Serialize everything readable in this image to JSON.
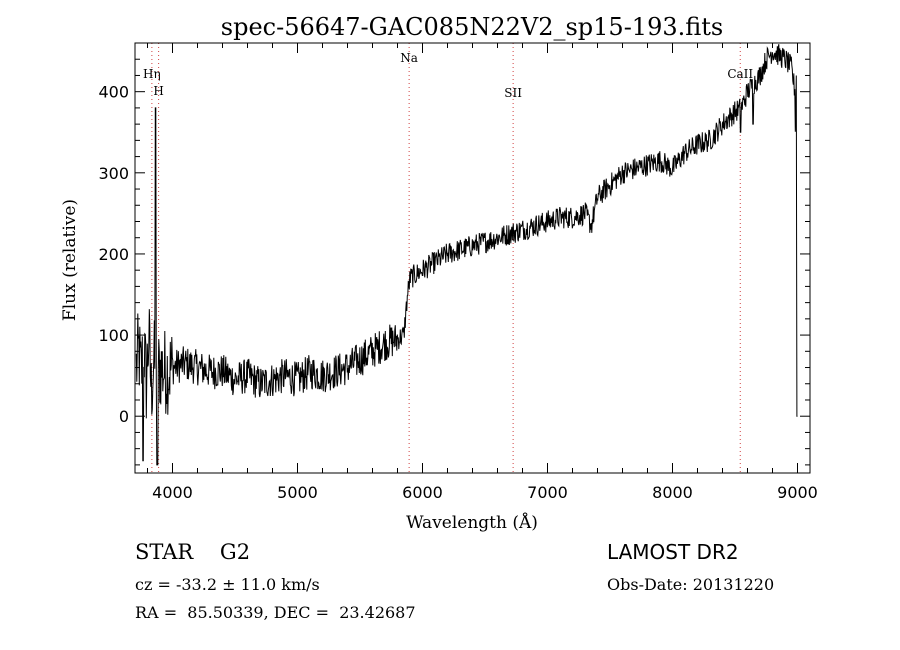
{
  "chart_data": {
    "type": "line",
    "title": "spec-56647-GAC085N22V2_sp15-193.fits",
    "xlabel": "Wavelength (Å)",
    "ylabel": "Flux (relative)",
    "xlim": [
      3700,
      9100
    ],
    "ylim": [
      -70,
      460
    ],
    "xticks": [
      4000,
      5000,
      6000,
      7000,
      8000,
      9000
    ],
    "yticks": [
      0,
      100,
      200,
      300,
      400
    ],
    "grid": false,
    "legend": "none",
    "line_color": "#000000",
    "annotation_color": "#d04040",
    "series": [
      {
        "x": [
          3710,
          3730,
          3750,
          3770,
          3790,
          3810,
          3830,
          3850,
          3870,
          3900,
          3950,
          4000,
          4100,
          4200,
          4300,
          4400,
          4500,
          4600,
          4700,
          4800,
          4900,
          5000,
          5100,
          5200,
          5300,
          5400,
          5500,
          5600,
          5700,
          5800,
          5850,
          5880,
          5900,
          5950,
          6000,
          6100,
          6200,
          6300,
          6400,
          6500,
          6600,
          6700,
          6800,
          6900,
          7000,
          7100,
          7200,
          7300,
          7350,
          7400,
          7500,
          7600,
          7700,
          7800,
          7900,
          8000,
          8100,
          8200,
          8300,
          8400,
          8500,
          8550,
          8600,
          8650,
          8700,
          8750,
          8800,
          8850,
          8900,
          8950,
          8980,
          9000
        ],
        "y": [
          60,
          80,
          50,
          90,
          40,
          100,
          30,
          70,
          50,
          60,
          55,
          60,
          65,
          60,
          55,
          55,
          45,
          50,
          40,
          45,
          50,
          45,
          55,
          50,
          55,
          60,
          70,
          80,
          90,
          95,
          100,
          150,
          170,
          175,
          180,
          190,
          200,
          205,
          210,
          215,
          220,
          225,
          230,
          235,
          240,
          245,
          245,
          250,
          235,
          270,
          285,
          300,
          305,
          310,
          315,
          305,
          325,
          335,
          340,
          360,
          375,
          380,
          400,
          410,
          420,
          440,
          450,
          445,
          440,
          430,
          400,
          0
        ]
      }
    ],
    "annotations": [
      {
        "label": "Hη",
        "x": 3835
      },
      {
        "label": "H",
        "x": 3889
      },
      {
        "label": "Na",
        "x": 5893
      },
      {
        "label": "SII",
        "x": 6725
      },
      {
        "label": "CaII",
        "x": 8542
      }
    ]
  },
  "info": {
    "object": "STAR    G2",
    "cz": "cz = -33.2 ± 11.0 km/s",
    "radec": "RA =  85.50339, DEC =  23.42687",
    "survey": "LAMOST DR2",
    "obsdate": "Obs-Date: 20131220"
  }
}
